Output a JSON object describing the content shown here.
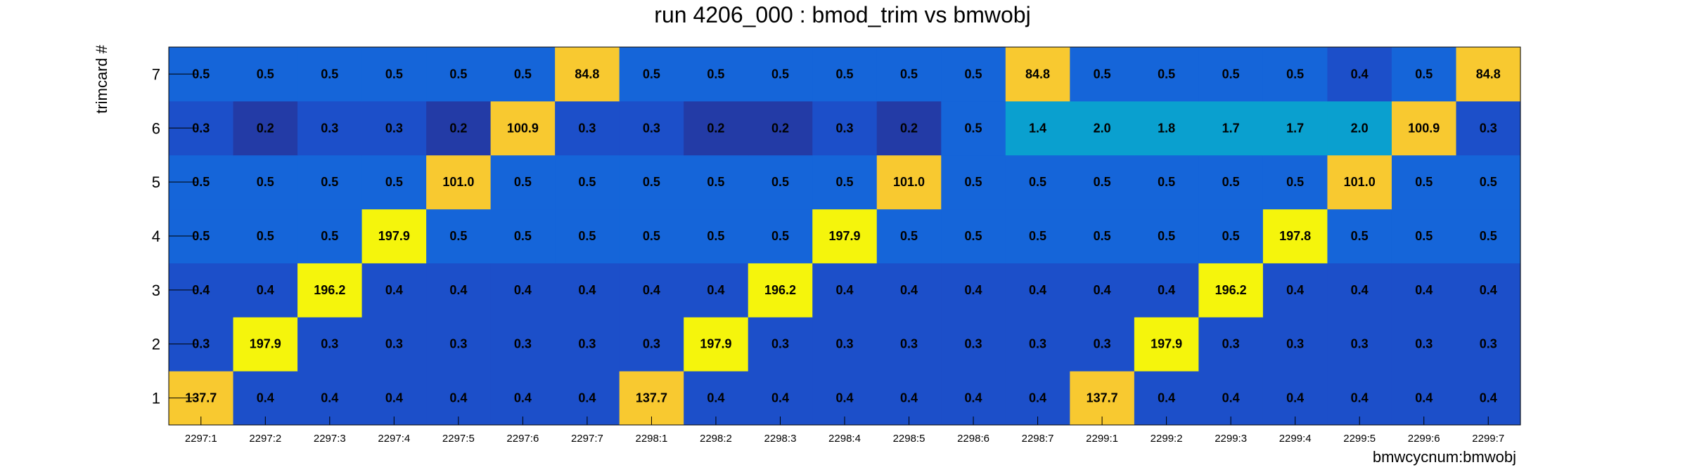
{
  "chart_data": {
    "type": "heatmap",
    "title": "run 4206_000 : bmod_trim vs bmwobj",
    "xlabel": "bmwcycnum:bmwobj",
    "ylabel": "trimcard #",
    "x_categories": [
      "2297:1",
      "2297:2",
      "2297:3",
      "2297:4",
      "2297:5",
      "2297:6",
      "2297:7",
      "2298:1",
      "2298:2",
      "2298:3",
      "2298:4",
      "2298:5",
      "2298:6",
      "2298:7",
      "2299:1",
      "2299:2",
      "2299:3",
      "2299:4",
      "2299:5",
      "2299:6",
      "2299:7"
    ],
    "y_categories": [
      "1",
      "2",
      "3",
      "4",
      "5",
      "6",
      "7"
    ],
    "values": [
      [
        "137.7",
        "0.4",
        "0.4",
        "0.4",
        "0.4",
        "0.4",
        "0.4",
        "137.7",
        "0.4",
        "0.4",
        "0.4",
        "0.4",
        "0.4",
        "0.4",
        "137.7",
        "0.4",
        "0.4",
        "0.4",
        "0.4",
        "0.4",
        "0.4"
      ],
      [
        "0.3",
        "197.9",
        "0.3",
        "0.3",
        "0.3",
        "0.3",
        "0.3",
        "0.3",
        "197.9",
        "0.3",
        "0.3",
        "0.3",
        "0.3",
        "0.3",
        "0.3",
        "197.9",
        "0.3",
        "0.3",
        "0.3",
        "0.3",
        "0.3"
      ],
      [
        "0.4",
        "0.4",
        "196.2",
        "0.4",
        "0.4",
        "0.4",
        "0.4",
        "0.4",
        "0.4",
        "196.2",
        "0.4",
        "0.4",
        "0.4",
        "0.4",
        "0.4",
        "0.4",
        "196.2",
        "0.4",
        "0.4",
        "0.4",
        "0.4"
      ],
      [
        "0.5",
        "0.5",
        "0.5",
        "197.9",
        "0.5",
        "0.5",
        "0.5",
        "0.5",
        "0.5",
        "0.5",
        "197.9",
        "0.5",
        "0.5",
        "0.5",
        "0.5",
        "0.5",
        "0.5",
        "197.8",
        "0.5",
        "0.5",
        "0.5"
      ],
      [
        "0.5",
        "0.5",
        "0.5",
        "0.5",
        "101.0",
        "0.5",
        "0.5",
        "0.5",
        "0.5",
        "0.5",
        "0.5",
        "101.0",
        "0.5",
        "0.5",
        "0.5",
        "0.5",
        "0.5",
        "0.5",
        "101.0",
        "0.5",
        "0.5"
      ],
      [
        "0.3",
        "0.2",
        "0.3",
        "0.3",
        "0.2",
        "100.9",
        "0.3",
        "0.3",
        "0.2",
        "0.2",
        "0.3",
        "0.2",
        "0.5",
        "1.4",
        "2.0",
        "1.8",
        "1.7",
        "1.7",
        "2.0",
        "100.9",
        "0.3"
      ],
      [
        "0.5",
        "0.5",
        "0.5",
        "0.5",
        "0.5",
        "0.5",
        "84.8",
        "0.5",
        "0.5",
        "0.5",
        "0.5",
        "0.5",
        "0.5",
        "84.8",
        "0.5",
        "0.5",
        "0.5",
        "0.5",
        "0.4",
        "0.5",
        "84.8"
      ]
    ],
    "colors": {
      "lowest": "#233ba6",
      "low": "#1c4fc9",
      "mid": "#1565d9",
      "cyan": "#0aa0cf",
      "orange": "#f8c930",
      "yellow": "#f5f50c"
    }
  }
}
